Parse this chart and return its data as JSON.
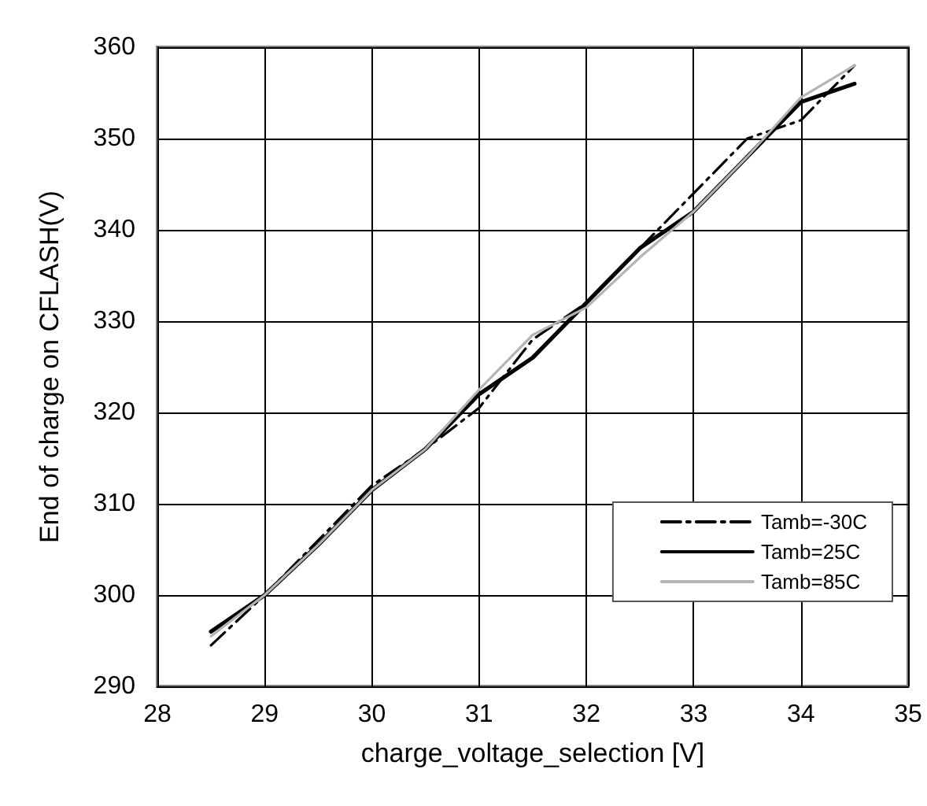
{
  "chart_data": {
    "type": "line",
    "xlabel": "charge_voltage_selection [V]",
    "ylabel": "End of charge on CFLASH(V)",
    "x": [
      28.5,
      29,
      29.5,
      30,
      30.5,
      31,
      31.5,
      32,
      32.5,
      33,
      33.5,
      34,
      34.5
    ],
    "series": [
      {
        "name": "Tamb=-30C",
        "color": "#000000",
        "line_style": "dashed",
        "values": [
          294.5,
          300,
          306,
          312,
          316,
          320.5,
          328,
          332,
          338,
          344,
          350,
          352,
          358
        ]
      },
      {
        "name": "Tamb=25C",
        "color": "#000000",
        "line_style": "solid",
        "values": [
          296,
          300,
          305.5,
          311.5,
          316,
          322,
          326,
          332,
          338,
          342,
          348,
          354,
          356
        ]
      },
      {
        "name": "Tamb=85C",
        "color": "#b4b4b4",
        "line_style": "solid",
        "values": [
          295.5,
          300,
          305.5,
          311.5,
          316,
          322.5,
          328.5,
          331.5,
          337,
          342,
          348,
          354.5,
          358
        ]
      }
    ],
    "xlim": [
      28,
      35
    ],
    "xticks": [
      28,
      29,
      30,
      31,
      32,
      33,
      34,
      35
    ],
    "ylim": [
      290,
      360
    ],
    "yticks": [
      290,
      300,
      310,
      320,
      330,
      340,
      350,
      360
    ],
    "grid": true,
    "legend": "bottom right",
    "marker": "none"
  }
}
